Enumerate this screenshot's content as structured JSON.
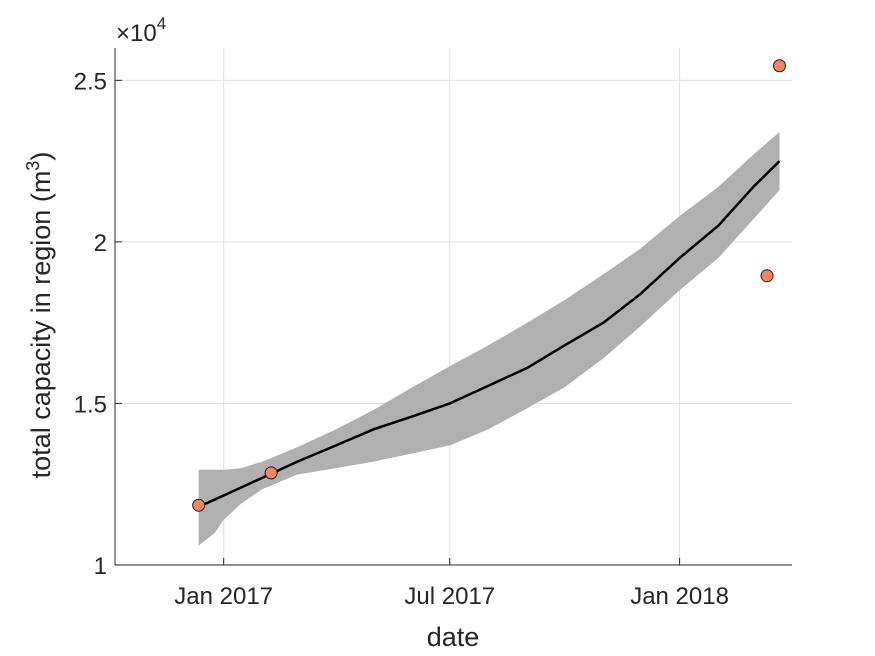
{
  "chart_data": {
    "type": "line",
    "xlabel": "date",
    "ylabel": "total capacity in region (m",
    "ylabel_superscript": "3",
    "ylabel_close": ")",
    "y_exponent_prefix": "×10",
    "y_exponent_power": "4",
    "x_tick_labels": [
      "Jan 2017",
      "Jul 2017",
      "Jan 2018"
    ],
    "x_ticks": [
      "2017-01-01",
      "2017-07-01",
      "2018-01-01"
    ],
    "y_tick_labels": [
      "1",
      "1.5",
      "2",
      "2.5"
    ],
    "y_ticks": [
      10000,
      15000,
      20000,
      25000
    ],
    "xlim": [
      "2016-10-06",
      "2018-04-01"
    ],
    "ylim": [
      10000,
      26000
    ],
    "grid": true,
    "colors": {
      "fit_line": "#000000",
      "band": "#b0b0b0",
      "points": "#f4875e",
      "grid": "#e0e0e0",
      "axis": "#262626"
    },
    "series": [
      {
        "kind": "fit",
        "x": [
          "2016-12-12",
          "2017-01-01",
          "2017-02-01",
          "2017-03-01",
          "2017-04-01",
          "2017-05-01",
          "2017-06-01",
          "2017-07-01",
          "2017-08-01",
          "2017-09-01",
          "2017-10-01",
          "2017-11-01",
          "2017-12-01",
          "2018-01-01",
          "2018-02-01",
          "2018-03-01",
          "2018-03-22"
        ],
        "y": [
          11800,
          12150,
          12700,
          13200,
          13700,
          14200,
          14600,
          15000,
          15550,
          16100,
          16800,
          17500,
          18400,
          19500,
          20500,
          21700,
          22500
        ]
      },
      {
        "kind": "band",
        "x": [
          "2016-12-12",
          "2016-12-25",
          "2017-01-01",
          "2017-01-15",
          "2017-02-01",
          "2017-03-01",
          "2017-04-01",
          "2017-05-01",
          "2017-06-01",
          "2017-07-01",
          "2017-08-01",
          "2017-09-01",
          "2017-10-01",
          "2017-11-01",
          "2017-12-01",
          "2018-01-01",
          "2018-02-01",
          "2018-03-01",
          "2018-03-22"
        ],
        "upper": [
          12950,
          12950,
          12950,
          13000,
          13200,
          13650,
          14200,
          14800,
          15500,
          16150,
          16800,
          17500,
          18200,
          19000,
          19800,
          20800,
          21700,
          22700,
          23400
        ],
        "lower": [
          10600,
          11000,
          11400,
          11900,
          12350,
          12800,
          13000,
          13200,
          13450,
          13700,
          14200,
          14850,
          15500,
          16400,
          17400,
          18500,
          19500,
          20700,
          21600
        ]
      },
      {
        "kind": "observations",
        "x": [
          "2016-12-12",
          "2017-02-08",
          "2018-03-12",
          "2018-03-22"
        ],
        "y": [
          11850,
          12850,
          18950,
          25450
        ]
      }
    ]
  }
}
